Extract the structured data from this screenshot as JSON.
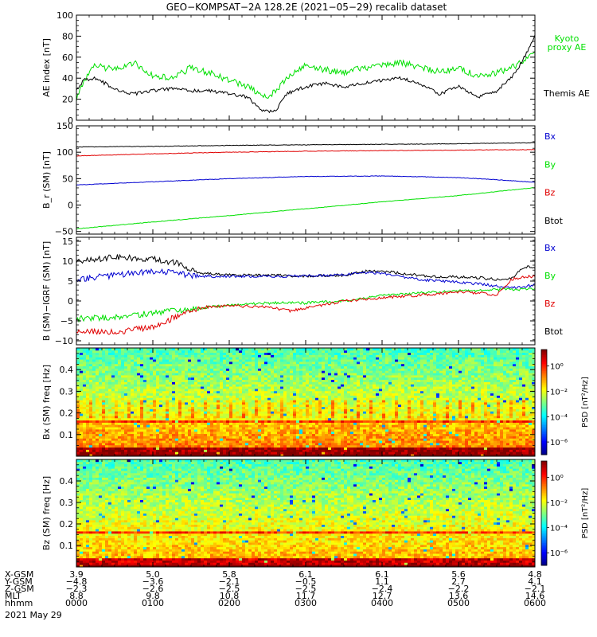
{
  "title": "GEO−KOMPSAT−2A 128.2E (2021−05−29) recalib dataset",
  "date_label": "2021 May 29",
  "colors": {
    "black": "#000000",
    "blue": "#0000d0",
    "green": "#00e000",
    "red": "#e00000",
    "kyoto": "#00e000"
  },
  "ephemeris": {
    "rows": [
      {
        "label": "X-GSM",
        "values": [
          "3.9",
          "5.0",
          "5.8",
          "6.1",
          "6.1",
          "5.6",
          "4.8"
        ]
      },
      {
        "label": "Y-GSM",
        "values": [
          "−4.8",
          "−3.6",
          "−2.1",
          "−0.5",
          "1.1",
          "2.7",
          "4.1"
        ]
      },
      {
        "label": "Z-GSM",
        "values": [
          "−2.3",
          "−2.6",
          "−2.5",
          "−2.5",
          "−2.4",
          "−2.2",
          "−2.1"
        ]
      },
      {
        "label": "MLT",
        "values": [
          "8.8",
          "9.8",
          "10.8",
          "11.7",
          "12.7",
          "13.6",
          "14.6"
        ]
      },
      {
        "label": "hhmm",
        "values": [
          "0000",
          "0100",
          "0200",
          "0300",
          "0400",
          "0500",
          "0600"
        ]
      }
    ]
  },
  "chart_data": [
    {
      "type": "line",
      "ylabel": "AE index [nT]",
      "ylim": [
        0,
        100
      ],
      "yticks": [
        0,
        20,
        40,
        60,
        80,
        100
      ],
      "xlim": [
        0,
        6
      ],
      "x_unit": "hours UT",
      "legend": [
        "Kyoto proxy AE",
        "Themis AE"
      ],
      "series": [
        {
          "name": "Kyoto proxy AE",
          "color": "green",
          "x": [
            0,
            0.1,
            0.25,
            0.5,
            0.75,
            1.0,
            1.25,
            1.5,
            1.75,
            2.0,
            2.25,
            2.5,
            2.75,
            3.0,
            3.25,
            3.5,
            3.75,
            4.0,
            4.25,
            4.5,
            4.75,
            5.0,
            5.25,
            5.5,
            5.75,
            5.9,
            6.0
          ],
          "y": [
            20,
            38,
            52,
            48,
            55,
            42,
            40,
            50,
            45,
            38,
            32,
            20,
            40,
            52,
            48,
            45,
            50,
            52,
            55,
            50,
            46,
            50,
            42,
            45,
            52,
            58,
            68
          ]
        },
        {
          "name": "Themis AE",
          "color": "black",
          "x": [
            0,
            0.1,
            0.25,
            0.5,
            0.75,
            1.0,
            1.25,
            1.5,
            1.75,
            2.0,
            2.25,
            2.4,
            2.6,
            2.75,
            3.0,
            3.25,
            3.5,
            3.75,
            4.0,
            4.25,
            4.5,
            4.75,
            5.0,
            5.25,
            5.5,
            5.75,
            5.9,
            6.0
          ],
          "y": [
            30,
            38,
            40,
            30,
            25,
            28,
            30,
            28,
            28,
            25,
            22,
            10,
            8,
            25,
            32,
            35,
            32,
            35,
            38,
            40,
            35,
            25,
            32,
            22,
            28,
            45,
            65,
            80
          ]
        }
      ]
    },
    {
      "type": "line",
      "ylabel": "B_r (SM) [nT]",
      "ylim": [
        -55,
        150
      ],
      "yticks": [
        -50,
        0,
        50,
        100,
        150
      ],
      "xlim": [
        0,
        6
      ],
      "legend": [
        "Bx",
        "By",
        "Bz",
        "Btot"
      ],
      "series": [
        {
          "name": "Btot",
          "color": "black",
          "x": [
            0,
            1,
            2,
            3,
            4,
            5,
            6
          ],
          "y": [
            110,
            111,
            113,
            114,
            115,
            116,
            118
          ]
        },
        {
          "name": "Bz",
          "color": "red",
          "x": [
            0,
            1,
            2,
            3,
            4,
            5,
            6
          ],
          "y": [
            93,
            97,
            100,
            102,
            103,
            104,
            105
          ]
        },
        {
          "name": "Bx",
          "color": "blue",
          "x": [
            0,
            1,
            2,
            3,
            4,
            5,
            5.5,
            6
          ],
          "y": [
            38,
            44,
            50,
            54,
            55,
            52,
            48,
            43
          ]
        },
        {
          "name": "By",
          "color": "green",
          "x": [
            0,
            1,
            2,
            3,
            4,
            5,
            6
          ],
          "y": [
            -45,
            -32,
            -20,
            -7,
            6,
            18,
            33
          ]
        }
      ]
    },
    {
      "type": "line",
      "ylabel": "B (SM)−IGRF (SM) [nT]",
      "ylim": [
        -11,
        16
      ],
      "yticks": [
        -10,
        -5,
        0,
        5,
        10,
        15
      ],
      "xlim": [
        0,
        6
      ],
      "legend": [
        "Bx",
        "By",
        "Bz",
        "Btot"
      ],
      "series": [
        {
          "name": "Btot",
          "color": "black",
          "x": [
            0,
            0.5,
            1.0,
            1.3,
            1.6,
            2.0,
            2.5,
            3.0,
            3.5,
            3.8,
            4.0,
            4.3,
            4.6,
            5.0,
            5.3,
            5.6,
            5.75,
            5.85,
            6.0
          ],
          "y": [
            10,
            11,
            10.5,
            9.5,
            7,
            6.5,
            6.5,
            6.3,
            6.5,
            7.5,
            7.5,
            6.8,
            6.2,
            6,
            5.8,
            5.2,
            6.5,
            8.5,
            8.5
          ]
        },
        {
          "name": "Bx",
          "color": "blue",
          "x": [
            0,
            0.5,
            1.0,
            1.3,
            1.6,
            2.0,
            2.5,
            3.0,
            3.5,
            3.8,
            4.0,
            4.3,
            4.6,
            5.0,
            5.3,
            5.6,
            5.8,
            6.0
          ],
          "y": [
            5.5,
            6.5,
            7.5,
            7,
            6.2,
            6.2,
            6.2,
            6.3,
            6.5,
            7.2,
            7,
            6,
            5.2,
            4.8,
            4.2,
            3.5,
            3.5,
            4.0
          ]
        },
        {
          "name": "By",
          "color": "green",
          "x": [
            0,
            0.5,
            1.0,
            1.5,
            2.0,
            2.5,
            3.0,
            3.5,
            4.0,
            4.5,
            5.0,
            5.5,
            6.0
          ],
          "y": [
            -4.5,
            -4,
            -3,
            -2,
            -1,
            -0.5,
            -0.5,
            0,
            1.5,
            2,
            2.5,
            2.8,
            3.0
          ]
        },
        {
          "name": "Bz",
          "color": "red",
          "x": [
            0,
            0.5,
            1.0,
            1.3,
            1.7,
            2.0,
            2.5,
            2.8,
            3.0,
            3.5,
            4.0,
            4.5,
            5.0,
            5.3,
            5.5,
            5.7,
            5.85,
            6.0
          ],
          "y": [
            -7.5,
            -7.8,
            -6.5,
            -4,
            -1.5,
            -1.2,
            -1.5,
            -2.5,
            -1.8,
            0,
            0.8,
            1.5,
            2.2,
            2,
            1.5,
            5.5,
            6.0,
            6.2
          ]
        }
      ]
    },
    {
      "type": "heatmap",
      "ylabel": "Bx (SM) freq [Hz]",
      "ylim": [
        0,
        0.5
      ],
      "yticks": [
        0.1,
        0.2,
        0.3,
        0.4
      ],
      "xlim": [
        0,
        6
      ],
      "colorbar_label": "PSD [nT²/Hz]",
      "colorbar_ticks": [
        "10⁰",
        "10⁻²",
        "10⁻⁴",
        "10⁻⁶"
      ],
      "colorbar_exponents": [
        0,
        -2,
        -4,
        -6
      ],
      "colorbar_range": [
        -7,
        1.3
      ]
    },
    {
      "type": "heatmap",
      "ylabel": "Bz (SM) freq [Hz]",
      "ylim": [
        0,
        0.5
      ],
      "yticks": [
        0.1,
        0.2,
        0.3,
        0.4
      ],
      "xlim": [
        0,
        6
      ],
      "colorbar_label": "PSD [nT²/Hz]",
      "colorbar_ticks": [
        "10⁰",
        "10⁻²",
        "10⁻⁴",
        "10⁻⁶"
      ],
      "colorbar_exponents": [
        0,
        -2,
        -4,
        -6
      ],
      "colorbar_range": [
        -7,
        1.3
      ]
    }
  ]
}
